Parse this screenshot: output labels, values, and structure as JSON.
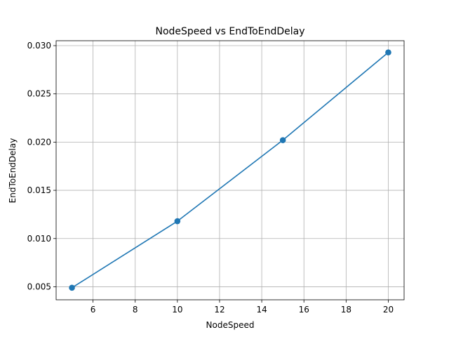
{
  "chart_data": {
    "type": "line",
    "title": "NodeSpeed vs EndToEndDelay",
    "xlabel": "NodeSpeed",
    "ylabel": "EndToEndDelay",
    "xlim": [
      4.25,
      20.75
    ],
    "ylim": [
      0.00365,
      0.03051
    ],
    "xticks": [
      6,
      8,
      10,
      12,
      14,
      16,
      18,
      20
    ],
    "xtick_labels": [
      "6",
      "8",
      "10",
      "12",
      "14",
      "16",
      "18",
      "20"
    ],
    "yticks": [
      0.005,
      0.01,
      0.015,
      0.02,
      0.025,
      0.03
    ],
    "ytick_labels": [
      "0.005",
      "0.010",
      "0.015",
      "0.020",
      "0.025",
      "0.030"
    ],
    "grid": true,
    "series": [
      {
        "x": [
          5,
          10,
          15,
          20
        ],
        "y": [
          0.0049,
          0.0118,
          0.0202,
          0.0293
        ],
        "color": "#1f77b4",
        "marker": "circle"
      }
    ]
  }
}
